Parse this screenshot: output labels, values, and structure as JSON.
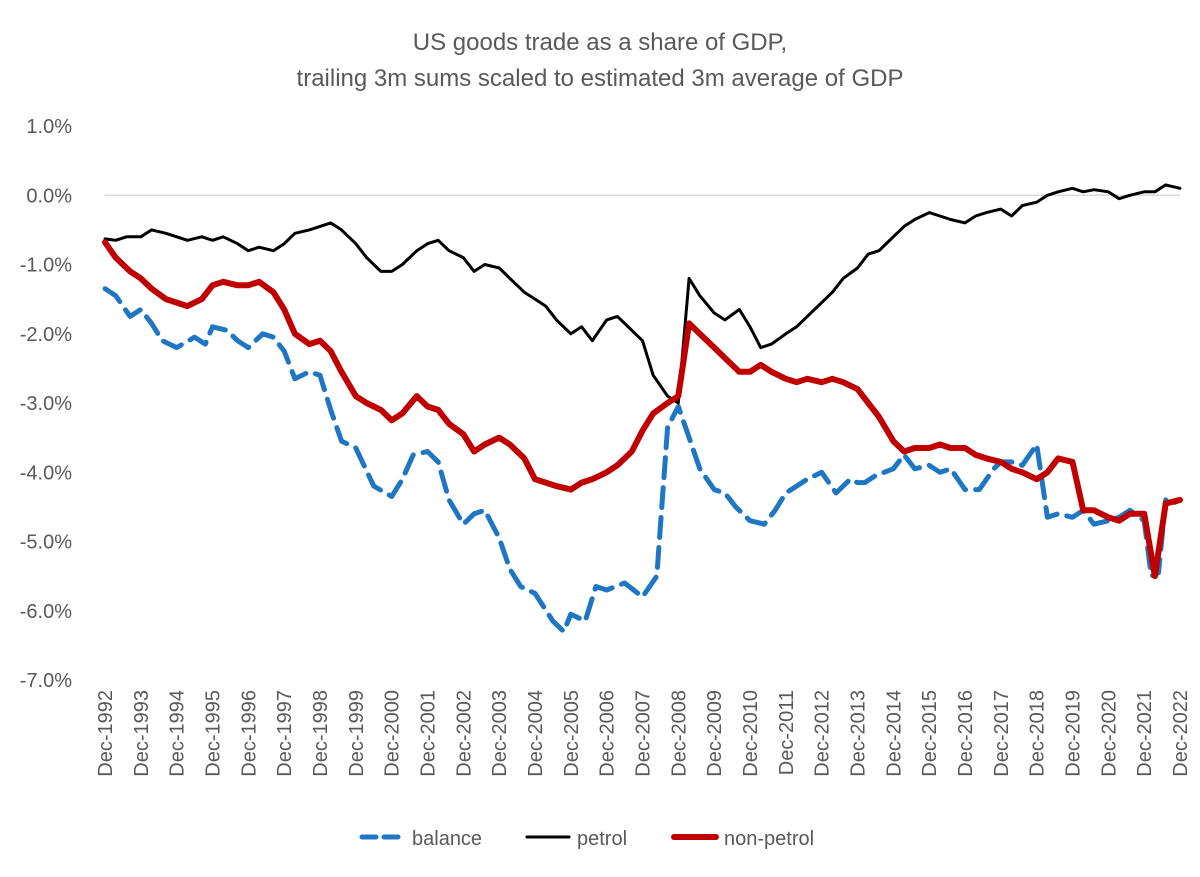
{
  "chart_data": {
    "type": "line",
    "title_lines": [
      "US goods trade as a share of GDP,",
      "trailing 3m sums scaled to estimated 3m average of GDP"
    ],
    "xlabel": "",
    "ylabel": "",
    "ylim": [
      -0.07,
      0.01
    ],
    "y_ticks": [
      0.01,
      0.0,
      -0.01,
      -0.02,
      -0.03,
      -0.04,
      -0.05,
      -0.06,
      -0.07
    ],
    "y_tick_labels": [
      "1.0%",
      "0.0%",
      "-1.0%",
      "-2.0%",
      "-3.0%",
      "-4.0%",
      "-5.0%",
      "-6.0%",
      "-7.0%"
    ],
    "x_tick_labels": [
      "Dec-1992",
      "Dec-1993",
      "Dec-1994",
      "Dec-1995",
      "Dec-1996",
      "Dec-1997",
      "Dec-1998",
      "Dec-1999",
      "Dec-2000",
      "Dec-2001",
      "Dec-2002",
      "Dec-2003",
      "Dec-2004",
      "Dec-2005",
      "Dec-2006",
      "Dec-2007",
      "Dec-2008",
      "Dec-2009",
      "Dec-2010",
      "Dec-2011",
      "Dec-2012",
      "Dec-2013",
      "Dec-2014",
      "Dec-2015",
      "Dec-2016",
      "Dec-2017",
      "Dec-2018",
      "Dec-2019",
      "Dec-2020",
      "Dec-2021",
      "Dec-2022"
    ],
    "x_range": [
      1992.0,
      2022.0
    ],
    "grid": "horizontal zero line only",
    "legend_position": "bottom",
    "series": [
      {
        "name": "balance",
        "color": "#1f77c4",
        "style": "dashed",
        "x": [
          1992.0,
          1992.3,
          1992.7,
          1993.0,
          1993.3,
          1993.6,
          1994.0,
          1994.5,
          1994.8,
          1995.0,
          1995.4,
          1995.7,
          1996.0,
          1996.4,
          1996.7,
          1997.0,
          1997.3,
          1997.7,
          1998.0,
          1998.3,
          1998.6,
          1999.0,
          1999.5,
          2000.0,
          2000.3,
          2000.6,
          2001.0,
          2001.3,
          2001.6,
          2002.0,
          2002.3,
          2002.6,
          2003.0,
          2003.3,
          2003.6,
          2004.0,
          2004.5,
          2004.8,
          2005.0,
          2005.4,
          2005.7,
          2006.0,
          2006.5,
          2007.0,
          2007.4,
          2007.7,
          2008.0,
          2008.3,
          2008.6,
          2009.0,
          2009.3,
          2009.6,
          2010.0,
          2010.4,
          2010.7,
          2011.0,
          2011.3,
          2011.6,
          2012.0,
          2012.4,
          2012.8,
          2013.0,
          2013.2,
          2013.5,
          2014.0,
          2014.3,
          2014.6,
          2015.0,
          2015.3,
          2015.6,
          2016.0,
          2016.4,
          2016.8,
          2017.0,
          2017.3,
          2017.6,
          2018.0,
          2018.3,
          2018.6,
          2019.0,
          2019.3,
          2019.6,
          2020.0,
          2020.3,
          2020.6,
          2021.0,
          2021.2,
          2021.4,
          2021.6,
          2021.8,
          2022.0
        ],
        "y": [
          -0.0135,
          -0.0145,
          -0.0175,
          -0.0165,
          -0.0185,
          -0.021,
          -0.022,
          -0.0205,
          -0.0215,
          -0.019,
          -0.0195,
          -0.021,
          -0.022,
          -0.02,
          -0.0205,
          -0.0225,
          -0.0265,
          -0.0255,
          -0.026,
          -0.031,
          -0.0355,
          -0.0365,
          -0.042,
          -0.0435,
          -0.041,
          -0.0375,
          -0.037,
          -0.0385,
          -0.044,
          -0.0475,
          -0.046,
          -0.0455,
          -0.0495,
          -0.054,
          -0.0565,
          -0.0575,
          -0.0615,
          -0.063,
          -0.0605,
          -0.0615,
          -0.0565,
          -0.057,
          -0.056,
          -0.058,
          -0.055,
          -0.0335,
          -0.0305,
          -0.035,
          -0.0395,
          -0.0425,
          -0.043,
          -0.045,
          -0.047,
          -0.0475,
          -0.0455,
          -0.043,
          -0.042,
          -0.041,
          -0.04,
          -0.043,
          -0.041,
          -0.0415,
          -0.0415,
          -0.0405,
          -0.0395,
          -0.0375,
          -0.0395,
          -0.039,
          -0.04,
          -0.0395,
          -0.0425,
          -0.0425,
          -0.0395,
          -0.0385,
          -0.0385,
          -0.039,
          -0.036,
          -0.0465,
          -0.046,
          -0.0465,
          -0.0455,
          -0.0475,
          -0.047,
          -0.0465,
          -0.0455,
          -0.047,
          -0.055,
          -0.0545,
          -0.044,
          -0.0445,
          -0.044
        ]
      },
      {
        "name": "petrol",
        "color": "#000000",
        "style": "solid",
        "x": [
          1992.0,
          1992.3,
          1992.6,
          1993.0,
          1993.3,
          1993.7,
          1994.0,
          1994.3,
          1994.7,
          1995.0,
          1995.3,
          1995.7,
          1996.0,
          1996.3,
          1996.7,
          1997.0,
          1997.3,
          1997.7,
          1998.0,
          1998.3,
          1998.6,
          1999.0,
          1999.3,
          1999.7,
          2000.0,
          2000.3,
          2000.7,
          2001.0,
          2001.3,
          2001.6,
          2002.0,
          2002.3,
          2002.6,
          2003.0,
          2003.3,
          2003.7,
          2004.0,
          2004.3,
          2004.6,
          2005.0,
          2005.3,
          2005.6,
          2006.0,
          2006.3,
          2006.7,
          2007.0,
          2007.3,
          2007.7,
          2008.0,
          2008.3,
          2008.6,
          2009.0,
          2009.3,
          2009.7,
          2010.0,
          2010.3,
          2010.6,
          2011.0,
          2011.3,
          2011.6,
          2012.0,
          2012.3,
          2012.6,
          2013.0,
          2013.3,
          2013.6,
          2014.0,
          2014.3,
          2014.6,
          2015.0,
          2015.3,
          2015.6,
          2016.0,
          2016.3,
          2016.6,
          2017.0,
          2017.3,
          2017.6,
          2018.0,
          2018.3,
          2018.6,
          2019.0,
          2019.3,
          2019.6,
          2020.0,
          2020.3,
          2020.6,
          2021.0,
          2021.3,
          2021.6,
          2022.0
        ],
        "y": [
          -0.0063,
          -0.0065,
          -0.006,
          -0.006,
          -0.005,
          -0.0055,
          -0.006,
          -0.0065,
          -0.006,
          -0.0065,
          -0.006,
          -0.007,
          -0.008,
          -0.0075,
          -0.008,
          -0.007,
          -0.0055,
          -0.005,
          -0.0045,
          -0.004,
          -0.005,
          -0.007,
          -0.009,
          -0.011,
          -0.011,
          -0.01,
          -0.008,
          -0.007,
          -0.0065,
          -0.008,
          -0.009,
          -0.011,
          -0.01,
          -0.0105,
          -0.012,
          -0.014,
          -0.015,
          -0.016,
          -0.018,
          -0.02,
          -0.019,
          -0.021,
          -0.018,
          -0.0175,
          -0.0195,
          -0.021,
          -0.026,
          -0.029,
          -0.03,
          -0.012,
          -0.0145,
          -0.017,
          -0.018,
          -0.0165,
          -0.019,
          -0.022,
          -0.0215,
          -0.02,
          -0.019,
          -0.0175,
          -0.0155,
          -0.014,
          -0.012,
          -0.0105,
          -0.0085,
          -0.008,
          -0.006,
          -0.0045,
          -0.0035,
          -0.0025,
          -0.003,
          -0.0035,
          -0.004,
          -0.003,
          -0.0025,
          -0.002,
          -0.003,
          -0.0015,
          -0.001,
          0.0,
          0.0005,
          0.001,
          0.0005,
          0.0008,
          0.0005,
          -0.0005,
          0.0,
          0.0005,
          0.0005,
          0.0015,
          0.001
        ]
      },
      {
        "name": "non-petrol",
        "color": "#c00000",
        "style": "solid",
        "x": [
          1992.0,
          1992.3,
          1992.7,
          1993.0,
          1993.3,
          1993.7,
          1994.0,
          1994.3,
          1994.7,
          1995.0,
          1995.3,
          1995.7,
          1996.0,
          1996.3,
          1996.7,
          1997.0,
          1997.3,
          1997.7,
          1998.0,
          1998.3,
          1998.6,
          1999.0,
          1999.3,
          1999.7,
          2000.0,
          2000.3,
          2000.7,
          2001.0,
          2001.3,
          2001.6,
          2002.0,
          2002.3,
          2002.6,
          2003.0,
          2003.3,
          2003.7,
          2004.0,
          2004.3,
          2004.6,
          2005.0,
          2005.3,
          2005.6,
          2006.0,
          2006.3,
          2006.7,
          2007.0,
          2007.3,
          2007.7,
          2008.0,
          2008.3,
          2008.6,
          2009.0,
          2009.3,
          2009.7,
          2010.0,
          2010.3,
          2010.6,
          2011.0,
          2011.3,
          2011.6,
          2012.0,
          2012.3,
          2012.6,
          2013.0,
          2013.3,
          2013.6,
          2014.0,
          2014.3,
          2014.6,
          2015.0,
          2015.3,
          2015.6,
          2016.0,
          2016.3,
          2016.6,
          2017.0,
          2017.3,
          2017.6,
          2018.0,
          2018.3,
          2018.6,
          2019.0,
          2019.3,
          2019.6,
          2020.0,
          2020.3,
          2020.6,
          2021.0,
          2021.3,
          2021.6,
          2022.0
        ],
        "y": [
          -0.0068,
          -0.009,
          -0.011,
          -0.012,
          -0.0135,
          -0.015,
          -0.0155,
          -0.016,
          -0.015,
          -0.013,
          -0.0125,
          -0.013,
          -0.013,
          -0.0125,
          -0.014,
          -0.0165,
          -0.02,
          -0.0215,
          -0.021,
          -0.0225,
          -0.0255,
          -0.029,
          -0.03,
          -0.031,
          -0.0325,
          -0.0315,
          -0.029,
          -0.0305,
          -0.031,
          -0.033,
          -0.0345,
          -0.037,
          -0.036,
          -0.035,
          -0.036,
          -0.038,
          -0.041,
          -0.0415,
          -0.042,
          -0.0425,
          -0.0415,
          -0.041,
          -0.04,
          -0.039,
          -0.037,
          -0.034,
          -0.0315,
          -0.03,
          -0.029,
          -0.0185,
          -0.02,
          -0.022,
          -0.0235,
          -0.0255,
          -0.0255,
          -0.0245,
          -0.0255,
          -0.0265,
          -0.027,
          -0.0265,
          -0.027,
          -0.0265,
          -0.027,
          -0.028,
          -0.03,
          -0.032,
          -0.0355,
          -0.037,
          -0.0365,
          -0.0365,
          -0.036,
          -0.0365,
          -0.0365,
          -0.0375,
          -0.038,
          -0.0385,
          -0.0395,
          -0.04,
          -0.041,
          -0.04,
          -0.038,
          -0.0385,
          -0.0455,
          -0.0455,
          -0.0465,
          -0.047,
          -0.046,
          -0.046,
          -0.055,
          -0.0445,
          -0.044
        ]
      }
    ]
  }
}
